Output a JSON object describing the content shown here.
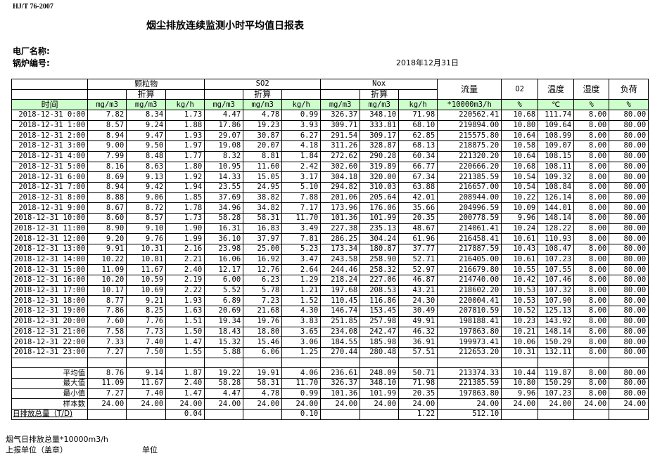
{
  "standard": "HJ/T  76-2007",
  "title": "烟尘排放连续监测小时平均值日报表",
  "plant_label": "电厂名称:",
  "boiler_label": "锅炉编号:",
  "date": "2018年12月31日",
  "header": {
    "groups": [
      "颗粒物",
      "SO2",
      "Nox"
    ],
    "converted": "折算",
    "flow": "流量",
    "o2": "O2",
    "temp": "温度",
    "humidity": "湿度",
    "load": "负荷",
    "units": [
      "时间",
      "mg/m3",
      "mg/m3",
      "kg/h",
      "mg/m3",
      "mg/m3",
      "kg/h",
      "mg/m3",
      "mg/m3",
      "kg/h",
      "*10000m3/h",
      "%",
      "℃",
      "%",
      "%"
    ]
  },
  "rows": [
    [
      "2018-12-31 0:00",
      "7.82",
      "8.34",
      "1.73",
      "4.47",
      "4.78",
      "0.99",
      "326.37",
      "348.10",
      "71.98",
      "220562.41",
      "10.68",
      "111.74",
      "8.00",
      "80.00"
    ],
    [
      "2018-12-31 1:00",
      "8.57",
      "9.24",
      "1.88",
      "17.86",
      "19.23",
      "3.93",
      "309.71",
      "333.81",
      "68.10",
      "219894.00",
      "10.80",
      "109.64",
      "8.00",
      "80.00"
    ],
    [
      "2018-12-31 2:00",
      "8.94",
      "9.47",
      "1.93",
      "29.07",
      "30.87",
      "6.27",
      "291.54",
      "309.17",
      "62.85",
      "215575.80",
      "10.64",
      "108.99",
      "8.00",
      "80.00"
    ],
    [
      "2018-12-31 3:00",
      "9.00",
      "9.50",
      "1.97",
      "19.08",
      "20.07",
      "4.18",
      "311.26",
      "328.87",
      "68.13",
      "218875.20",
      "10.58",
      "109.07",
      "8.00",
      "80.00"
    ],
    [
      "2018-12-31 4:00",
      "7.99",
      "8.48",
      "1.77",
      "8.32",
      "8.81",
      "1.84",
      "272.62",
      "290.28",
      "60.34",
      "221320.20",
      "10.64",
      "108.15",
      "8.00",
      "80.00"
    ],
    [
      "2018-12-31 5:00",
      "8.16",
      "8.63",
      "1.80",
      "10.95",
      "11.60",
      "2.42",
      "302.60",
      "319.89",
      "66.77",
      "220666.20",
      "10.68",
      "108.11",
      "8.00",
      "80.00"
    ],
    [
      "2018-12-31 6:00",
      "8.69",
      "9.13",
      "1.92",
      "14.33",
      "15.05",
      "3.17",
      "304.18",
      "320.00",
      "67.34",
      "221385.59",
      "10.54",
      "109.32",
      "8.00",
      "80.00"
    ],
    [
      "2018-12-31 7:00",
      "8.94",
      "9.42",
      "1.94",
      "23.55",
      "24.95",
      "5.10",
      "294.82",
      "310.03",
      "63.88",
      "216657.00",
      "10.54",
      "108.84",
      "8.00",
      "80.00"
    ],
    [
      "2018-12-31 8:00",
      "8.88",
      "9.06",
      "1.85",
      "37.69",
      "38.82",
      "7.88",
      "201.06",
      "205.64",
      "42.01",
      "208944.00",
      "10.22",
      "126.14",
      "8.00",
      "80.00"
    ],
    [
      "2018-12-31 9:00",
      "8.67",
      "8.72",
      "1.78",
      "34.96",
      "34.82",
      "7.17",
      "173.96",
      "176.06",
      "35.66",
      "204996.59",
      "10.09",
      "144.01",
      "8.00",
      "80.00"
    ],
    [
      "2018-12-31 10:00",
      "8.60",
      "8.57",
      "1.73",
      "58.28",
      "58.31",
      "11.70",
      "101.36",
      "101.99",
      "20.35",
      "200778.59",
      "9.96",
      "148.14",
      "8.00",
      "80.00"
    ],
    [
      "2018-12-31 11:00",
      "8.90",
      "9.10",
      "1.90",
      "16.31",
      "16.83",
      "3.49",
      "227.38",
      "235.13",
      "48.67",
      "214061.41",
      "10.24",
      "128.22",
      "8.00",
      "80.00"
    ],
    [
      "2018-12-31 12:00",
      "9.20",
      "9.76",
      "1.99",
      "36.10",
      "37.97",
      "7.81",
      "286.25",
      "304.24",
      "61.96",
      "216458.41",
      "10.61",
      "110.93",
      "8.00",
      "80.00"
    ],
    [
      "2018-12-31 13:00",
      "9.91",
      "10.31",
      "2.16",
      "23.98",
      "25.00",
      "5.23",
      "173.34",
      "180.87",
      "37.77",
      "217887.59",
      "10.43",
      "108.47",
      "8.00",
      "80.00"
    ],
    [
      "2018-12-31 14:00",
      "10.22",
      "10.81",
      "2.21",
      "16.06",
      "16.92",
      "3.47",
      "243.58",
      "258.90",
      "52.71",
      "216405.00",
      "10.61",
      "107.23",
      "8.00",
      "80.00"
    ],
    [
      "2018-12-31 15:00",
      "11.09",
      "11.67",
      "2.40",
      "12.17",
      "12.76",
      "2.64",
      "244.46",
      "258.32",
      "52.97",
      "216679.80",
      "10.55",
      "107.55",
      "8.00",
      "80.00"
    ],
    [
      "2018-12-31 16:00",
      "10.20",
      "10.59",
      "2.19",
      "6.00",
      "6.23",
      "1.29",
      "218.24",
      "227.06",
      "46.87",
      "214740.00",
      "10.42",
      "107.46",
      "8.00",
      "80.00"
    ],
    [
      "2018-12-31 17:00",
      "10.17",
      "10.69",
      "2.22",
      "5.52",
      "5.78",
      "1.21",
      "197.68",
      "208.53",
      "43.21",
      "218602.20",
      "10.53",
      "107.32",
      "8.00",
      "80.00"
    ],
    [
      "2018-12-31 18:00",
      "8.77",
      "9.21",
      "1.93",
      "6.89",
      "7.23",
      "1.52",
      "110.45",
      "116.86",
      "24.30",
      "220004.41",
      "10.53",
      "107.90",
      "8.00",
      "80.00"
    ],
    [
      "2018-12-31 19:00",
      "7.86",
      "8.25",
      "1.63",
      "20.69",
      "21.68",
      "4.30",
      "146.74",
      "153.45",
      "30.49",
      "207810.59",
      "10.52",
      "125.13",
      "8.00",
      "80.00"
    ],
    [
      "2018-12-31 20:00",
      "7.60",
      "7.76",
      "1.51",
      "19.34",
      "19.76",
      "3.83",
      "251.85",
      "257.98",
      "49.91",
      "198188.41",
      "10.23",
      "143.92",
      "8.00",
      "80.00"
    ],
    [
      "2018-12-31 21:00",
      "7.58",
      "7.73",
      "1.50",
      "18.43",
      "18.80",
      "3.65",
      "234.08",
      "242.47",
      "46.32",
      "197863.80",
      "10.21",
      "148.14",
      "8.00",
      "80.00"
    ],
    [
      "2018-12-31 22:00",
      "7.33",
      "7.40",
      "1.47",
      "15.32",
      "15.46",
      "3.06",
      "184.55",
      "185.98",
      "36.91",
      "199973.41",
      "10.06",
      "150.29",
      "8.00",
      "80.00"
    ],
    [
      "2018-12-31 23:00",
      "7.27",
      "7.50",
      "1.55",
      "5.88",
      "6.06",
      "1.25",
      "270.44",
      "280.48",
      "57.51",
      "212653.20",
      "10.31",
      "132.11",
      "8.00",
      "80.00"
    ]
  ],
  "summary": [
    [
      "平均值",
      "8.76",
      "9.14",
      "1.87",
      "19.22",
      "19.91",
      "4.06",
      "236.61",
      "248.09",
      "50.71",
      "213374.33",
      "10.44",
      "119.87",
      "8.00",
      "80.00"
    ],
    [
      "最大值",
      "11.09",
      "11.67",
      "2.40",
      "58.28",
      "58.31",
      "11.70",
      "326.37",
      "348.10",
      "71.98",
      "221385.59",
      "10.80",
      "150.29",
      "8.00",
      "80.00"
    ],
    [
      "最小值",
      "7.27",
      "7.40",
      "1.47",
      "4.47",
      "4.78",
      "0.99",
      "101.36",
      "101.99",
      "20.35",
      "197863.80",
      "9.96",
      "107.23",
      "8.00",
      "80.00"
    ],
    [
      "样本数",
      "24.00",
      "24.00",
      "24.00",
      "24.00",
      "24.00",
      "24.00",
      "24.00",
      "24.00",
      "24.00",
      "24.00",
      "24.00",
      "24.00",
      "24.00",
      "24.00"
    ]
  ],
  "total": [
    "日排放总量（T/D)",
    "",
    "",
    "0.04",
    "",
    "",
    "0.10",
    "",
    "",
    "1.22",
    "512.10",
    "",
    "",
    "",
    ""
  ],
  "footer": {
    "flue_gas": "烟气日排放总量*10000m3/h",
    "reporting_unit": "上报单位（盖章）",
    "unit": "单位"
  },
  "colors": {
    "header_green": "#ccffcc"
  }
}
